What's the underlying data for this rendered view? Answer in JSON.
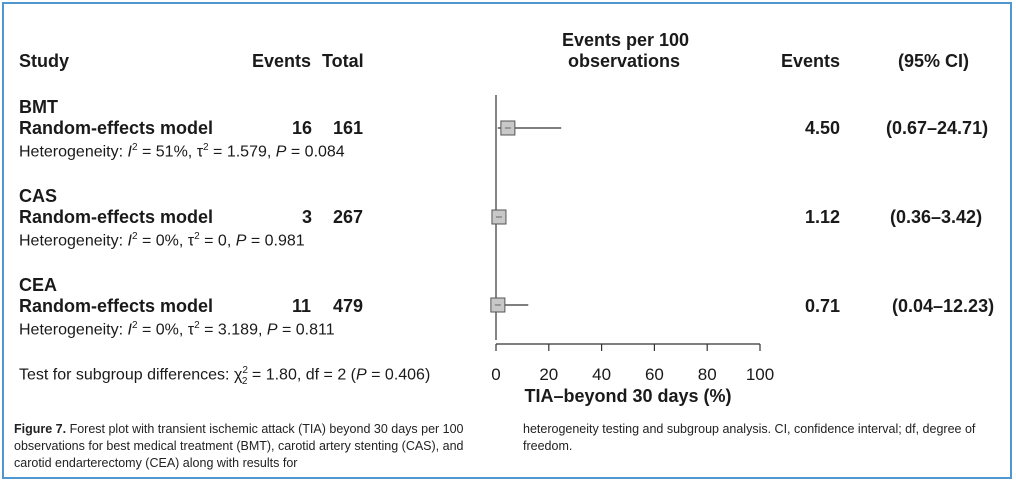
{
  "headers": {
    "study": "Study",
    "events": "Events",
    "total": "Total",
    "plot_line1": "Events per 100",
    "plot_line2": "observations",
    "right_events": "Events",
    "ci": "(95% CI)"
  },
  "groups": [
    {
      "name": "BMT",
      "model": "Random-effects model",
      "events": "16",
      "total": "161",
      "het_prefix": "Heterogeneity: ",
      "het_i2": "= 51%, ",
      "het_tau2": "= 1.579, ",
      "het_p": "= 0.084",
      "estimate": "4.50",
      "ci": "(0.67–24.71)"
    },
    {
      "name": "CAS",
      "model": "Random-effects model",
      "events": "3",
      "total": "267",
      "het_prefix": "Heterogeneity: ",
      "het_i2": "= 0%, ",
      "het_tau2": "= 0, ",
      "het_p": "= 0.981",
      "estimate": "1.12",
      "ci": "(0.36–3.42)"
    },
    {
      "name": "CEA",
      "model": "Random-effects model",
      "events": "11",
      "total": "479",
      "het_prefix": "Heterogeneity: ",
      "het_i2": "= 0%, ",
      "het_tau2": "= 3.189, ",
      "het_p": "= 0.811",
      "estimate": "0.71",
      "ci": "(0.04–12.23)"
    }
  ],
  "subgroup_test": {
    "prefix": "Test for subgroup differences: ",
    "chi_value": "= 1.80, df = 2 (",
    "p_value": "= 0.406)"
  },
  "chart_data": {
    "type": "scatter",
    "subtype": "forest",
    "xlabel": "TIA–beyond 30 days (%)",
    "xlim": [
      0,
      100
    ],
    "xticks": [
      0,
      20,
      40,
      60,
      80,
      100
    ],
    "categories": [
      "BMT",
      "CAS",
      "CEA"
    ],
    "estimates": [
      4.5,
      1.12,
      0.71
    ],
    "ci_lower": [
      0.67,
      0.36,
      0.04
    ],
    "ci_upper": [
      24.71,
      3.42,
      12.23
    ],
    "reference_line": 0
  },
  "caption": {
    "label": "Figure 7.",
    "text_left": "Forest plot with transient ischemic attack (TIA) beyond 30 days per 100 observations for best medical treatment (BMT), carotid artery stenting (CAS), and carotid endarterectomy (CEA) along with results for",
    "text_right": "heterogeneity testing and subgroup analysis. CI, confidence interval; df, degree of freedom."
  },
  "colors": {
    "border": "#4f97d0",
    "box_fill": "#c8c8c8",
    "line": "#333333"
  }
}
